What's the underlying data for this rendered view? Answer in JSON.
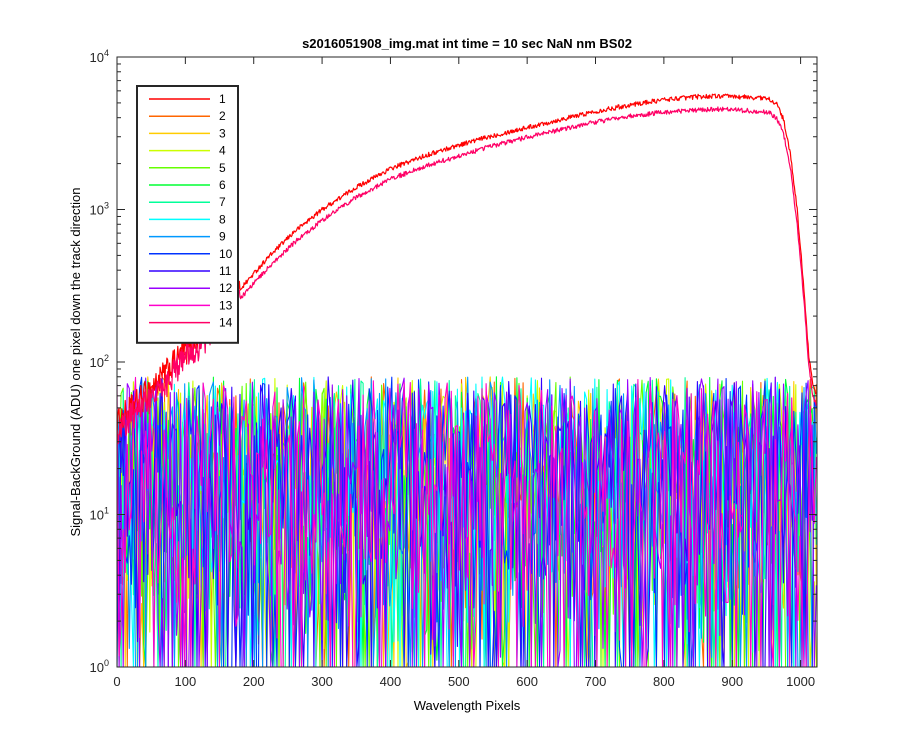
{
  "chart_data": {
    "type": "line",
    "title": "s2016051908_img.mat int time = 10 sec  NaN nm BS02",
    "xlabel": "Wavelength Pixels",
    "ylabel": "Signal-BackGround (ADU) one pixel down the track direction",
    "xlim": [
      0,
      1024
    ],
    "ylim": [
      1,
      10000
    ],
    "yscale": "log",
    "grid": false,
    "legend_position": "top-left",
    "x_ticks": [
      0,
      100,
      200,
      300,
      400,
      500,
      600,
      700,
      800,
      900,
      1000
    ],
    "y_ticks": [
      {
        "value": 1,
        "base": "10",
        "exp": "0"
      },
      {
        "value": 10,
        "base": "10",
        "exp": "1"
      },
      {
        "value": 100,
        "base": "10",
        "exp": "2"
      },
      {
        "value": 1000,
        "base": "10",
        "exp": "3"
      },
      {
        "value": 10000,
        "base": "10",
        "exp": "4"
      }
    ],
    "signal_profile": {
      "x": [
        0,
        10,
        30,
        60,
        100,
        140,
        180,
        220,
        260,
        300,
        350,
        400,
        450,
        500,
        550,
        600,
        650,
        700,
        750,
        800,
        850,
        880,
        900,
        920,
        940,
        955,
        965,
        975,
        985,
        995,
        1005,
        1012,
        1018,
        1024
      ],
      "series_1": [
        40,
        45,
        55,
        75,
        120,
        190,
        300,
        480,
        720,
        1000,
        1400,
        1850,
        2250,
        2650,
        3050,
        3450,
        3900,
        4400,
        4850,
        5250,
        5500,
        5550,
        5500,
        5450,
        5400,
        5300,
        4900,
        3900,
        2300,
        1000,
        300,
        110,
        70,
        60
      ],
      "series_14": [
        35,
        40,
        50,
        65,
        105,
        165,
        260,
        410,
        610,
        850,
        1200,
        1580,
        1920,
        2250,
        2620,
        2980,
        3350,
        3750,
        4100,
        4350,
        4500,
        4550,
        4500,
        4450,
        4400,
        4300,
        3950,
        3150,
        1900,
        800,
        250,
        95,
        60,
        50
      ]
    },
    "noise_range": [
      1,
      80
    ],
    "series": [
      {
        "name": "1",
        "color": "#ff0000",
        "profile": "series_1"
      },
      {
        "name": "2",
        "color": "#ff6600",
        "profile": "noise"
      },
      {
        "name": "3",
        "color": "#ffcc00",
        "profile": "noise"
      },
      {
        "name": "4",
        "color": "#ccff00",
        "profile": "noise"
      },
      {
        "name": "5",
        "color": "#66ff00",
        "profile": "noise"
      },
      {
        "name": "6",
        "color": "#00ff33",
        "profile": "noise"
      },
      {
        "name": "7",
        "color": "#00ff99",
        "profile": "noise"
      },
      {
        "name": "8",
        "color": "#00ffff",
        "profile": "noise"
      },
      {
        "name": "9",
        "color": "#0099ff",
        "profile": "noise"
      },
      {
        "name": "10",
        "color": "#0033ff",
        "profile": "noise"
      },
      {
        "name": "11",
        "color": "#3300ff",
        "profile": "noise"
      },
      {
        "name": "12",
        "color": "#9900ff",
        "profile": "noise"
      },
      {
        "name": "13",
        "color": "#ff00cc",
        "profile": "noise"
      },
      {
        "name": "14",
        "color": "#ff0066",
        "profile": "series_14"
      }
    ]
  }
}
